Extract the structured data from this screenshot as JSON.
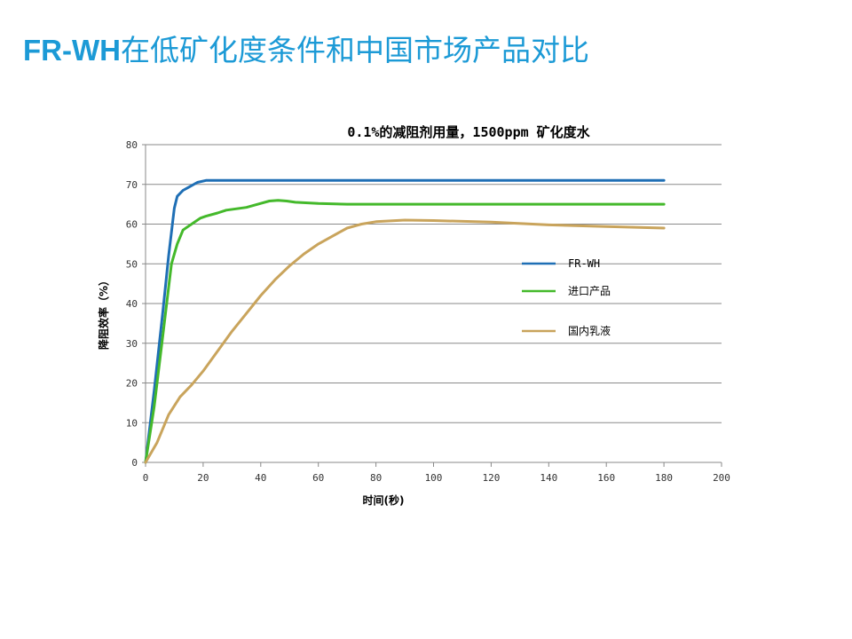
{
  "slide": {
    "title_latin": "FR-WH",
    "title_rest": "在低矿化度条件和中国市场产品对比"
  },
  "chart_data": {
    "type": "line",
    "title": "0.1%的减阻剂用量，1500ppm 矿化度水",
    "xlabel": "时间(秒)",
    "ylabel": "降阻效率（%）",
    "xlim": [
      0,
      200
    ],
    "ylim": [
      0,
      80
    ],
    "x_ticks": [
      0,
      20,
      40,
      60,
      80,
      100,
      120,
      140,
      160,
      180,
      200
    ],
    "y_ticks": [
      0,
      10,
      20,
      30,
      40,
      50,
      60,
      70,
      80
    ],
    "grid": "horizontal",
    "legend_position": "right",
    "series": [
      {
        "name": "FR-WH",
        "color": "#1f6fb5",
        "points": [
          [
            0,
            0
          ],
          [
            3,
            18
          ],
          [
            6,
            38
          ],
          [
            8,
            52
          ],
          [
            10,
            64
          ],
          [
            11,
            67
          ],
          [
            13,
            68.5
          ],
          [
            15,
            69.3
          ],
          [
            18,
            70.5
          ],
          [
            21,
            71
          ],
          [
            25,
            71
          ],
          [
            60,
            71
          ],
          [
            100,
            71
          ],
          [
            140,
            71
          ],
          [
            180,
            71
          ]
        ]
      },
      {
        "name": "进口产品",
        "color": "#44b92b",
        "points": [
          [
            0,
            0
          ],
          [
            3,
            14
          ],
          [
            6,
            32
          ],
          [
            9,
            50
          ],
          [
            11,
            55
          ],
          [
            13,
            58.5
          ],
          [
            15,
            59.5
          ],
          [
            17,
            60.5
          ],
          [
            19,
            61.5
          ],
          [
            21,
            62
          ],
          [
            25,
            62.8
          ],
          [
            28,
            63.5
          ],
          [
            35,
            64.2
          ],
          [
            40,
            65.2
          ],
          [
            43,
            65.8
          ],
          [
            46,
            66
          ],
          [
            49,
            65.8
          ],
          [
            52,
            65.5
          ],
          [
            60,
            65.2
          ],
          [
            70,
            65
          ],
          [
            100,
            65
          ],
          [
            140,
            65
          ],
          [
            180,
            65
          ]
        ]
      },
      {
        "name": "国内乳液",
        "color": "#c9a45c",
        "points": [
          [
            0,
            0
          ],
          [
            4,
            5
          ],
          [
            8,
            12
          ],
          [
            12,
            16.5
          ],
          [
            16,
            19.5
          ],
          [
            20,
            23
          ],
          [
            25,
            28
          ],
          [
            30,
            33
          ],
          [
            35,
            37.5
          ],
          [
            40,
            42
          ],
          [
            45,
            46
          ],
          [
            50,
            49.5
          ],
          [
            55,
            52.5
          ],
          [
            60,
            55
          ],
          [
            65,
            57
          ],
          [
            70,
            59
          ],
          [
            75,
            60
          ],
          [
            80,
            60.6
          ],
          [
            90,
            61
          ],
          [
            100,
            60.9
          ],
          [
            120,
            60.5
          ],
          [
            140,
            59.8
          ],
          [
            160,
            59.4
          ],
          [
            180,
            59
          ]
        ]
      }
    ]
  }
}
